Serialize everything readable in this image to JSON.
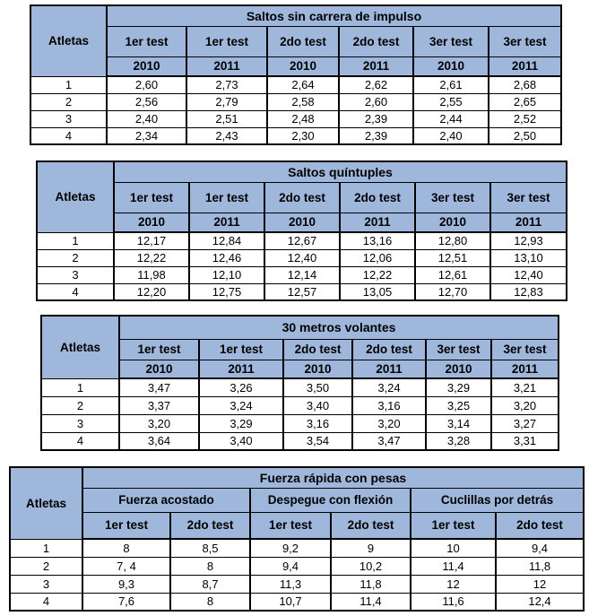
{
  "colors": {
    "header_fill": "#9EB7DA",
    "border": "#000000",
    "page_background": "#FFFFFF",
    "text": "#000000"
  },
  "tables": [
    {
      "id": "saltos-sin-carrera-de-impulso",
      "title": "Saltos sin carrera de impulso",
      "row_header": "Atletas",
      "header_style": "tests-years",
      "test_labels": [
        "1er test",
        "1er test",
        "2do test",
        "2do test",
        "3er test",
        "3er test"
      ],
      "year_labels": [
        "2010",
        "2011",
        "2010",
        "2011",
        "2010",
        "2011"
      ],
      "rows": [
        {
          "atleta": "1",
          "values": [
            "2,60",
            "2,73",
            "2,64",
            "2,62",
            "2,61",
            "2,68"
          ]
        },
        {
          "atleta": "2",
          "values": [
            "2,56",
            "2,79",
            "2,58",
            "2,60",
            "2,55",
            "2,65"
          ]
        },
        {
          "atleta": "3",
          "values": [
            "2,40",
            "2,51",
            "2,48",
            "2,39",
            "2,44",
            "2,52"
          ]
        },
        {
          "atleta": "4",
          "values": [
            "2,34",
            "2,43",
            "2,30",
            "2,39",
            "2,40",
            "2,50"
          ]
        }
      ]
    },
    {
      "id": "saltos-quintuples",
      "title": "Saltos quíntuples",
      "row_header": "Atletas",
      "header_style": "tests-years",
      "test_labels": [
        "1er test",
        "1er test",
        "2do test",
        "2do test",
        "3er test",
        "3er test"
      ],
      "year_labels": [
        "2010",
        "2011",
        "2010",
        "2011",
        "2010",
        "2011"
      ],
      "rows": [
        {
          "atleta": "1",
          "values": [
            "12,17",
            "12,84",
            "12,67",
            "13,16",
            "12,80",
            "12,93"
          ]
        },
        {
          "atleta": "2",
          "values": [
            "12,22",
            "12,46",
            "12,40",
            "12,06",
            "12,51",
            "13,10"
          ]
        },
        {
          "atleta": "3",
          "values": [
            "11,98",
            "12,10",
            "12,14",
            "12,22",
            "12,61",
            "12,40"
          ]
        },
        {
          "atleta": "4",
          "values": [
            "12,20",
            "12,75",
            "12,57",
            "13,05",
            "12,70",
            "12,83"
          ]
        }
      ]
    },
    {
      "id": "30-metros-volantes",
      "title": "30 metros volantes",
      "row_header": "Atletas",
      "header_style": "tests-years",
      "test_labels": [
        "1er test",
        "1er test",
        "2do test",
        "2do test",
        "3er test",
        "3er test"
      ],
      "year_labels": [
        "2010",
        "2011",
        "2010",
        "2011",
        "2010",
        "2011"
      ],
      "rows": [
        {
          "atleta": "1",
          "values": [
            "3,47",
            "3,26",
            "3,50",
            "3,24",
            "3,29",
            "3,21"
          ]
        },
        {
          "atleta": "2",
          "values": [
            "3,37",
            "3,24",
            "3,40",
            "3,16",
            "3,25",
            "3,20"
          ]
        },
        {
          "atleta": "3",
          "values": [
            "3,20",
            "3,29",
            "3,16",
            "3,20",
            "3,14",
            "3,27"
          ]
        },
        {
          "atleta": "4",
          "values": [
            "3,64",
            "3,40",
            "3,54",
            "3,47",
            "3,28",
            "3,31"
          ]
        }
      ]
    },
    {
      "id": "fuerza-rapida-con-pesas",
      "title": "Fuerza rápida con pesas",
      "row_header": "Atletas",
      "header_style": "groups-tests",
      "group_labels": [
        "Fuerza acostado",
        "Despegue con flexión",
        "Cuclillas por detrás"
      ],
      "test_labels": [
        "1er test",
        "2do test",
        "1er test",
        "2do test",
        "1er test",
        "2do test"
      ],
      "rows": [
        {
          "atleta": "1",
          "values": [
            "8",
            "8,5",
            "9,2",
            "9",
            "10",
            "9,4"
          ]
        },
        {
          "atleta": "2",
          "values": [
            "7, 4",
            "8",
            "9,4",
            "10,2",
            "11,4",
            "11,8"
          ]
        },
        {
          "atleta": "3",
          "values": [
            "9,3",
            "8,7",
            "11,3",
            "11,8",
            "12",
            "12"
          ]
        },
        {
          "atleta": "4",
          "values": [
            "7,6",
            "8",
            "10,7",
            "11,4",
            "11,6",
            "12,4"
          ]
        }
      ]
    }
  ]
}
